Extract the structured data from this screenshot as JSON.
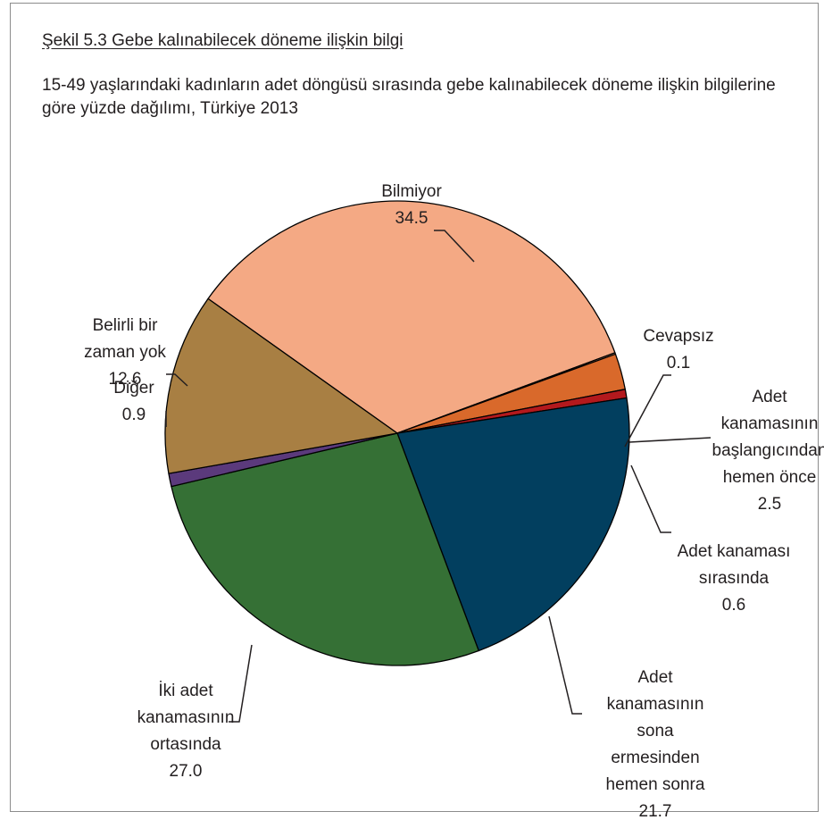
{
  "figure": {
    "title": "Şekil 5.3  Gebe kalınabilecek döneme ilişkin bilgi",
    "subtitle": "15-49 yaşlarındaki kadınların adet döngüsü sırasında gebe kalınabilecek döneme ilişkin bilgilerine göre yüzde dağılımı, Türkiye 2013"
  },
  "chart_data": {
    "type": "pie",
    "title": "Şekil 5.3  Gebe kalınabilecek döneme ilişkin bilgi",
    "subtitle": "15-49 yaşlarındaki kadınların adet döngüsü sırasında gebe kalınabilecek döneme ilişkin bilgilerine göre yüzde dağılımı, Türkiye 2013",
    "slices": [
      {
        "label": "Bilmiyor",
        "value": 34.5,
        "color": "#f4a984",
        "label_lines": [
          "Bilmiyor",
          "34.5"
        ]
      },
      {
        "label": "Cevapsız",
        "value": 0.1,
        "color": "#f4a984",
        "label_lines": [
          "Cevapsız",
          "0.1"
        ]
      },
      {
        "label": "Adet kanamasının başlangıcından hemen önce",
        "value": 2.5,
        "color": "#d9692b",
        "label_lines": [
          "Adet",
          "kanamasının",
          "başlangıcından",
          "hemen önce",
          "2.5"
        ]
      },
      {
        "label": "Adet kanaması sırasında",
        "value": 0.6,
        "color": "#b3191d",
        "label_lines": [
          "Adet kanaması",
          "sırasında",
          "0.6"
        ]
      },
      {
        "label": "Adet kanamasının sona ermesinden hemen sonra",
        "value": 21.7,
        "color": "#023f5f",
        "label_lines": [
          "Adet",
          "kanamasının",
          "sona",
          "ermesinden",
          "hemen sonra",
          "21.7"
        ]
      },
      {
        "label": "İki adet kanamasının ortasında",
        "value": 27.0,
        "color": "#357035",
        "label_lines": [
          "İki adet",
          "kanamasının",
          "ortasında",
          "27.0"
        ]
      },
      {
        "label": "Diğer",
        "value": 0.9,
        "color": "#5b3a7c",
        "label_lines": [
          "Diğer",
          "0.9"
        ]
      },
      {
        "label": "Belirli bir zaman yok",
        "value": 12.6,
        "color": "#a87f43",
        "label_lines": [
          "Belirli bir",
          "zaman yok",
          "12.6"
        ]
      }
    ],
    "start_angle_deg": -54.6,
    "direction": "clockwise",
    "legend": "none"
  }
}
